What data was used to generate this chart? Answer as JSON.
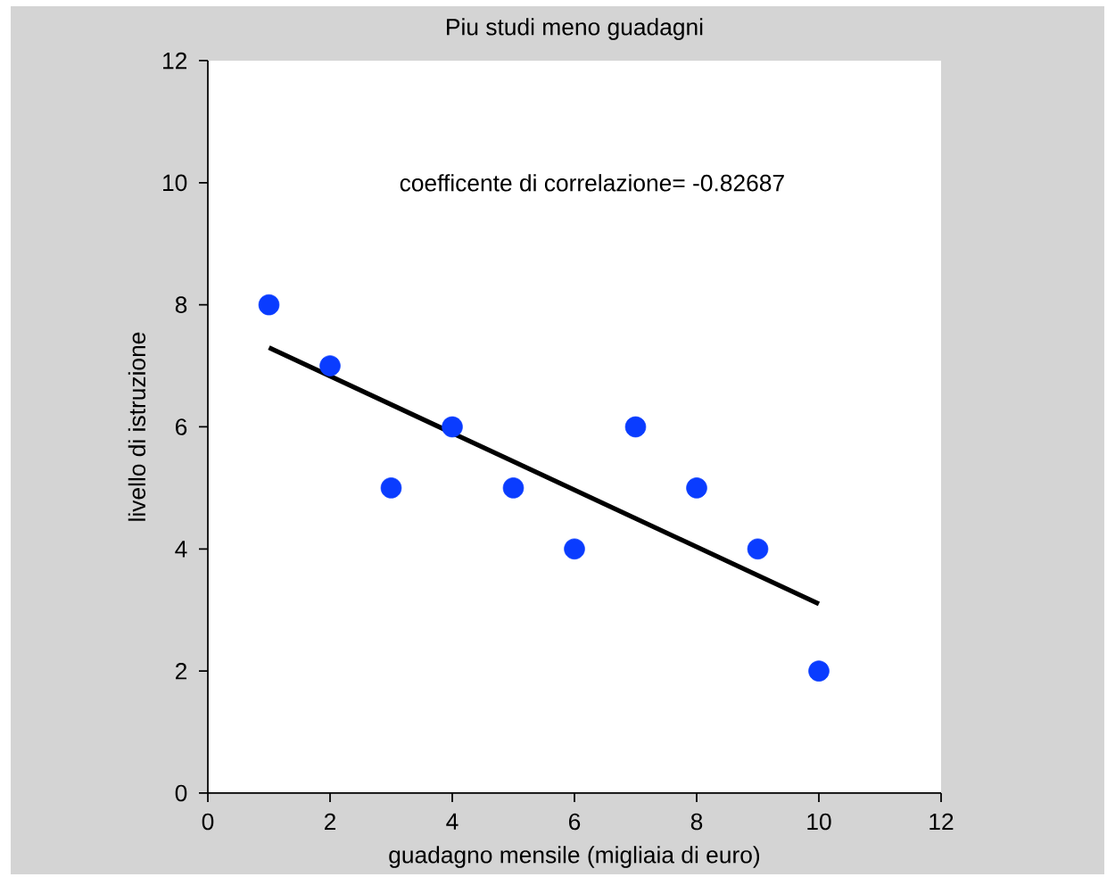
{
  "chart_data": {
    "type": "scatter",
    "title": "Piu studi meno guadagni",
    "xlabel": "guadagno mensile (migliaia di euro)",
    "ylabel": "livello di istruzione",
    "annotations": [
      "coefficente di correlazione=  -0.82687"
    ],
    "xlim": [
      0,
      12
    ],
    "ylim": [
      0,
      12
    ],
    "xticks": [
      0,
      2,
      4,
      6,
      8,
      10,
      12
    ],
    "yticks": [
      0,
      2,
      4,
      6,
      8,
      10,
      12
    ],
    "series": [
      {
        "color": "#0a3cff",
        "marker": "circle",
        "x": [
          1,
          2,
          3,
          4,
          5,
          6,
          7,
          8,
          9,
          10
        ],
        "values": [
          8,
          7,
          5,
          6,
          5,
          4,
          6,
          5,
          4,
          2
        ]
      },
      {
        "type": "line",
        "color": "#000000",
        "marker": "none",
        "x": [
          1,
          10
        ],
        "values": [
          7.3,
          3.1
        ]
      }
    ]
  }
}
